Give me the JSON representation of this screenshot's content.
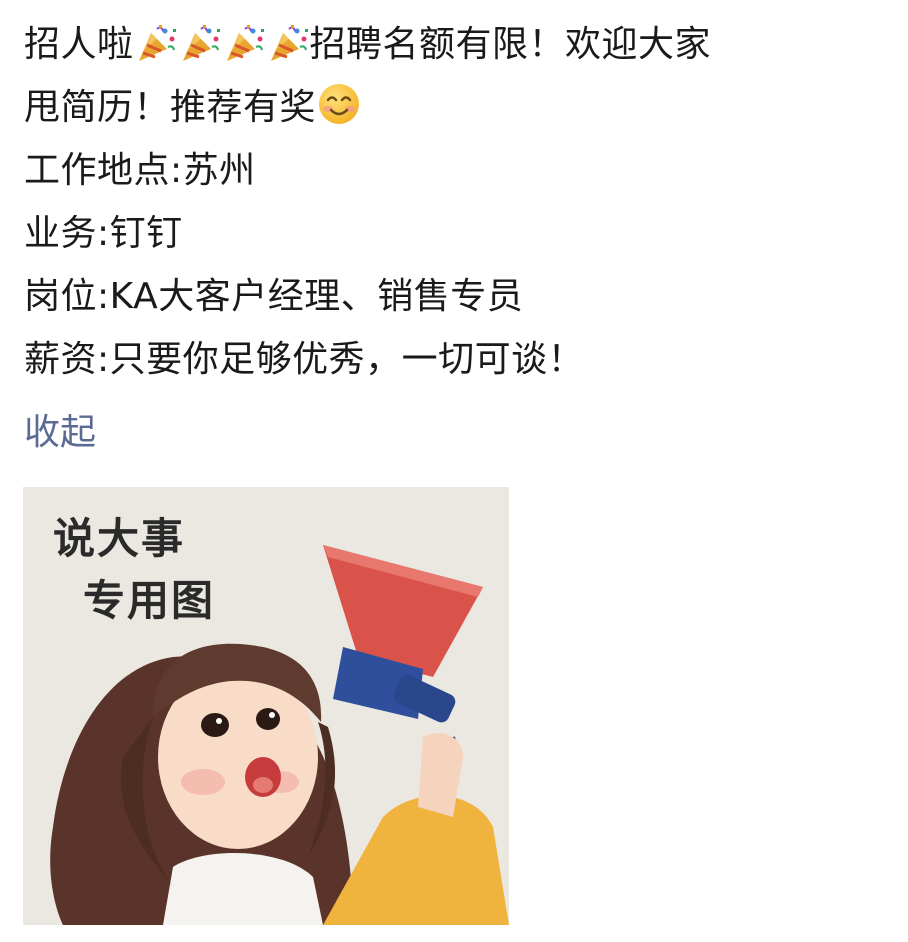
{
  "post": {
    "line1_a": "招人啦",
    "line1_b": "招聘名额有限！欢迎大家",
    "line2_a": "甩简历！推荐有奖",
    "line3": "工作地点:苏州",
    "line4": "业务:钉钉",
    "line5": "岗位:KA大客户经理、销售专员",
    "line6": "薪资:只要你足够优秀，一切可谈！",
    "party_icon": "party-popper-icon",
    "smile_icon": "smiling-face-icon"
  },
  "collapse_label": "收起",
  "image": {
    "caption_line1": "说大事",
    "caption_line2": "专用图"
  }
}
